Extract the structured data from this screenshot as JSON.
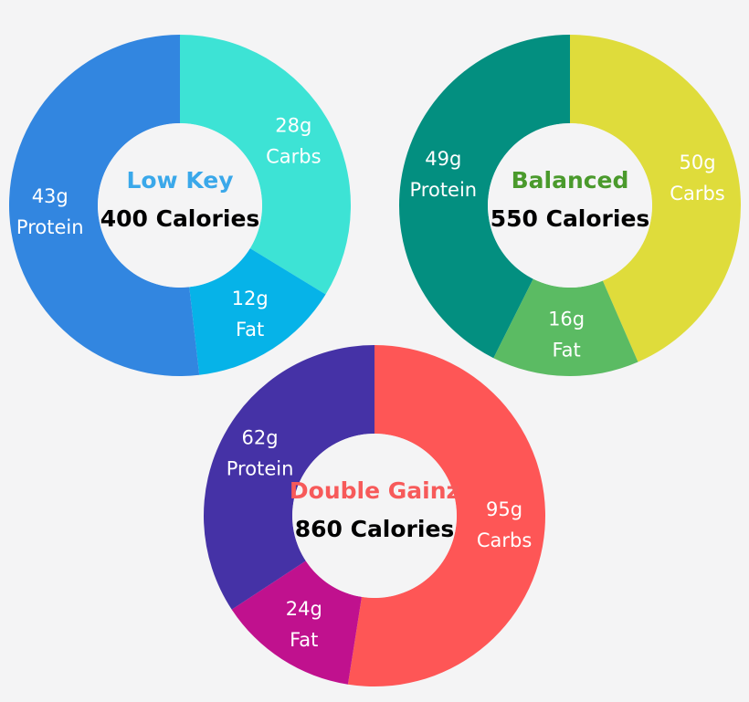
{
  "chart_data": [
    {
      "type": "donut",
      "title": "Low Key",
      "subtitle": "400 Calories",
      "title_color": "#3aa8ea",
      "categories": [
        "Carbs",
        "Fat",
        "Protein"
      ],
      "values": [
        28,
        12,
        43
      ],
      "value_labels": [
        "28g",
        "12g",
        "43g"
      ],
      "colors": [
        "#3de3d5",
        "#06b3e8",
        "#3286e0"
      ]
    },
    {
      "type": "donut",
      "title": "Balanced",
      "subtitle": "550 Calories",
      "title_color": "#4a9a2c",
      "categories": [
        "Carbs",
        "Fat",
        "Protein"
      ],
      "values": [
        50,
        16,
        49
      ],
      "value_labels": [
        "50g",
        "16g",
        "49g"
      ],
      "colors": [
        "#dfdc3b",
        "#5bbb63",
        "#038f80"
      ]
    },
    {
      "type": "donut",
      "title": "Double Gainz",
      "subtitle": "860 Calories",
      "title_color": "#f75a5a",
      "categories": [
        "Carbs",
        "Fat",
        "Protein"
      ],
      "values": [
        95,
        24,
        62
      ],
      "value_labels": [
        "95g",
        "24g",
        "62g"
      ],
      "colors": [
        "#fe5656",
        "#c0118e",
        "#4532a6"
      ]
    }
  ]
}
